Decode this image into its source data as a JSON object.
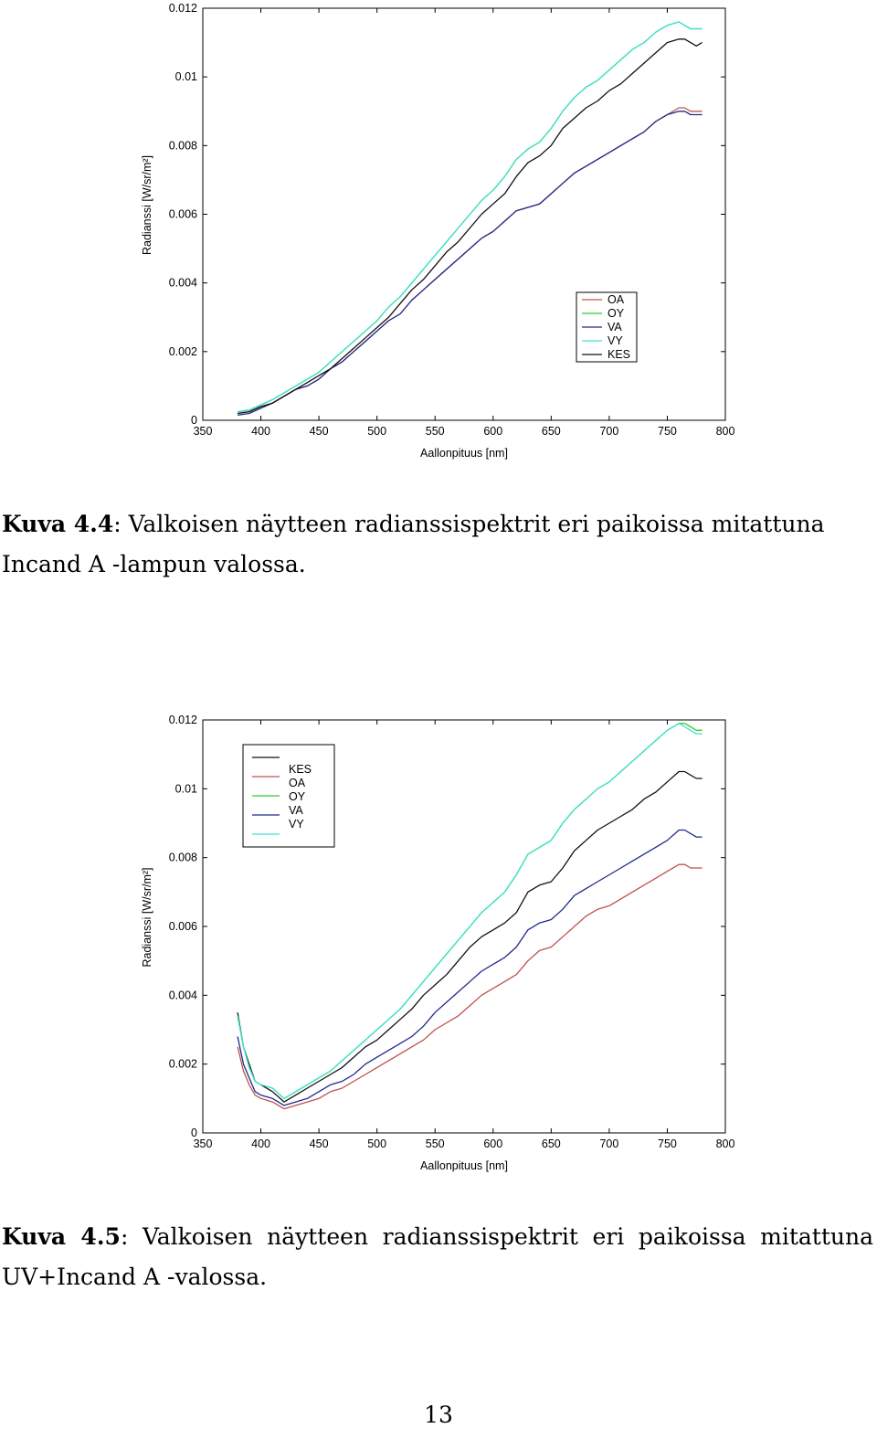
{
  "figures": [
    {
      "caption_label": "Kuva 4.4",
      "caption_text": ": Valkoisen näytteen radianssispektrit eri paikoissa mitattuna Incand A -lampun valossa."
    },
    {
      "caption_label": "Kuva 4.5",
      "caption_text": ": Valkoisen näytteen radianssispektrit eri paikoissa mitattuna UV+Incand A -valossa."
    }
  ],
  "page_number": "13",
  "chart_data": [
    {
      "type": "line",
      "xlabel": "Aallonpituus [nm]",
      "ylabel": "Radianssi [W/sr/m²]",
      "xlim": [
        350,
        800
      ],
      "ylim": [
        0,
        0.012
      ],
      "xticks": [
        "350",
        "400",
        "450",
        "500",
        "550",
        "600",
        "650",
        "700",
        "750",
        "800"
      ],
      "yticks": [
        "0",
        "0.002",
        "0.004",
        "0.006",
        "0.008",
        "0.01",
        "0.012"
      ],
      "legend_position": "bottom-right",
      "legend": [
        "OA",
        "OY",
        "VA",
        "VY",
        "KES"
      ],
      "x": [
        380,
        390,
        400,
        410,
        420,
        430,
        440,
        450,
        460,
        470,
        480,
        490,
        500,
        510,
        520,
        530,
        540,
        550,
        560,
        570,
        580,
        590,
        600,
        610,
        620,
        630,
        640,
        650,
        660,
        670,
        680,
        690,
        700,
        710,
        720,
        730,
        740,
        750,
        760,
        765,
        770,
        775,
        780
      ],
      "series": [
        {
          "name": "OA",
          "color": "#c0504d",
          "values": [
            0.0002,
            0.00025,
            0.0004,
            0.0005,
            0.0007,
            0.0009,
            0.001,
            0.0012,
            0.0015,
            0.0017,
            0.002,
            0.0023,
            0.0026,
            0.0029,
            0.0031,
            0.0035,
            0.0038,
            0.0041,
            0.0044,
            0.0047,
            0.005,
            0.0053,
            0.0055,
            0.0058,
            0.0061,
            0.0062,
            0.0063,
            0.0066,
            0.0069,
            0.0072,
            0.0074,
            0.0076,
            0.0078,
            0.008,
            0.0082,
            0.0084,
            0.0087,
            0.0089,
            0.0091,
            0.0091,
            0.009,
            0.009,
            0.009
          ]
        },
        {
          "name": "OY",
          "color": "#33cc33",
          "values": [
            0.00025,
            0.0003,
            0.00045,
            0.0006,
            0.0008,
            0.001,
            0.0012,
            0.0014,
            0.0017,
            0.002,
            0.0023,
            0.0026,
            0.0029,
            0.0033,
            0.0036,
            0.004,
            0.0044,
            0.0048,
            0.0052,
            0.0056,
            0.006,
            0.0064,
            0.0067,
            0.0071,
            0.0076,
            0.0079,
            0.0081,
            0.0085,
            0.009,
            0.0094,
            0.0097,
            0.0099,
            0.0102,
            0.0105,
            0.0108,
            0.011,
            0.0113,
            0.0115,
            0.0116,
            0.0115,
            0.0114,
            0.0114,
            0.0114
          ]
        },
        {
          "name": "VA",
          "color": "#1f2a8c",
          "values": [
            0.00015,
            0.0002,
            0.00035,
            0.0005,
            0.0007,
            0.0009,
            0.001,
            0.0012,
            0.0015,
            0.0017,
            0.002,
            0.0023,
            0.0026,
            0.0029,
            0.0031,
            0.0035,
            0.0038,
            0.0041,
            0.0044,
            0.0047,
            0.005,
            0.0053,
            0.0055,
            0.0058,
            0.0061,
            0.0062,
            0.0063,
            0.0066,
            0.0069,
            0.0072,
            0.0074,
            0.0076,
            0.0078,
            0.008,
            0.0082,
            0.0084,
            0.0087,
            0.0089,
            0.009,
            0.009,
            0.0089,
            0.0089,
            0.0089
          ]
        },
        {
          "name": "VY",
          "color": "#40e0d0",
          "values": [
            0.00025,
            0.0003,
            0.00045,
            0.0006,
            0.0008,
            0.001,
            0.0012,
            0.0014,
            0.0017,
            0.002,
            0.0023,
            0.0026,
            0.0029,
            0.0033,
            0.0036,
            0.004,
            0.0044,
            0.0048,
            0.0052,
            0.0056,
            0.006,
            0.0064,
            0.0067,
            0.0071,
            0.0076,
            0.0079,
            0.0081,
            0.0085,
            0.009,
            0.0094,
            0.0097,
            0.0099,
            0.0102,
            0.0105,
            0.0108,
            0.011,
            0.0113,
            0.0115,
            0.0116,
            0.0115,
            0.0114,
            0.0114,
            0.0114
          ]
        },
        {
          "name": "KES",
          "color": "#111111",
          "values": [
            0.0002,
            0.00025,
            0.0004,
            0.0005,
            0.0007,
            0.0009,
            0.0011,
            0.0013,
            0.0015,
            0.0018,
            0.0021,
            0.0024,
            0.0027,
            0.003,
            0.0034,
            0.0038,
            0.0041,
            0.0045,
            0.0049,
            0.0052,
            0.0056,
            0.006,
            0.0063,
            0.0066,
            0.0071,
            0.0075,
            0.0077,
            0.008,
            0.0085,
            0.0088,
            0.0091,
            0.0093,
            0.0096,
            0.0098,
            0.0101,
            0.0104,
            0.0107,
            0.011,
            0.0111,
            0.0111,
            0.011,
            0.0109,
            0.011
          ]
        }
      ]
    },
    {
      "type": "line",
      "xlabel": "Aallonpituus [nm]",
      "ylabel": "Radianssi [W/sr/m²]",
      "xlim": [
        350,
        800
      ],
      "ylim": [
        0,
        0.012
      ],
      "xticks": [
        "350",
        "400",
        "450",
        "500",
        "550",
        "600",
        "650",
        "700",
        "750",
        "800"
      ],
      "yticks": [
        "0",
        "0.002",
        "0.004",
        "0.006",
        "0.008",
        "0.01",
        "0.012"
      ],
      "legend_position": "top-left",
      "legend": [
        "KES",
        "OA",
        "OY",
        "VA",
        "VY"
      ],
      "x": [
        380,
        385,
        390,
        395,
        400,
        410,
        420,
        430,
        440,
        450,
        460,
        470,
        480,
        490,
        500,
        510,
        520,
        530,
        540,
        550,
        560,
        570,
        580,
        590,
        600,
        610,
        620,
        630,
        640,
        650,
        660,
        670,
        680,
        690,
        700,
        710,
        720,
        730,
        740,
        750,
        760,
        765,
        770,
        775,
        780
      ],
      "series": [
        {
          "name": "KES",
          "color": "#111111",
          "values": [
            0.0035,
            0.0025,
            0.002,
            0.0015,
            0.0014,
            0.0012,
            0.0009,
            0.0011,
            0.0013,
            0.0015,
            0.0017,
            0.0019,
            0.0022,
            0.0025,
            0.0027,
            0.003,
            0.0033,
            0.0036,
            0.004,
            0.0043,
            0.0046,
            0.005,
            0.0054,
            0.0057,
            0.0059,
            0.0061,
            0.0064,
            0.007,
            0.0072,
            0.0073,
            0.0077,
            0.0082,
            0.0085,
            0.0088,
            0.009,
            0.0092,
            0.0094,
            0.0097,
            0.0099,
            0.0102,
            0.0105,
            0.0105,
            0.0104,
            0.0103,
            0.0103
          ]
        },
        {
          "name": "OA",
          "color": "#c0504d",
          "values": [
            0.0025,
            0.0018,
            0.0014,
            0.0011,
            0.001,
            0.0009,
            0.0007,
            0.0008,
            0.0009,
            0.001,
            0.0012,
            0.0013,
            0.0015,
            0.0017,
            0.0019,
            0.0021,
            0.0023,
            0.0025,
            0.0027,
            0.003,
            0.0032,
            0.0034,
            0.0037,
            0.004,
            0.0042,
            0.0044,
            0.0046,
            0.005,
            0.0053,
            0.0054,
            0.0057,
            0.006,
            0.0063,
            0.0065,
            0.0066,
            0.0068,
            0.007,
            0.0072,
            0.0074,
            0.0076,
            0.0078,
            0.0078,
            0.0077,
            0.0077,
            0.0077
          ]
        },
        {
          "name": "OY",
          "color": "#33cc33",
          "values": [
            0.0034,
            0.0025,
            0.0019,
            0.0015,
            0.0014,
            0.0013,
            0.001,
            0.0012,
            0.0014,
            0.0016,
            0.0018,
            0.0021,
            0.0024,
            0.0027,
            0.003,
            0.0033,
            0.0036,
            0.004,
            0.0044,
            0.0048,
            0.0052,
            0.0056,
            0.006,
            0.0064,
            0.0067,
            0.007,
            0.0075,
            0.0081,
            0.0083,
            0.0085,
            0.009,
            0.0094,
            0.0097,
            0.01,
            0.0102,
            0.0105,
            0.0108,
            0.0111,
            0.0114,
            0.0117,
            0.0119,
            0.0119,
            0.0118,
            0.0117,
            0.0117
          ]
        },
        {
          "name": "VA",
          "color": "#1f2a8c",
          "values": [
            0.0028,
            0.002,
            0.0016,
            0.0012,
            0.0011,
            0.001,
            0.0008,
            0.0009,
            0.001,
            0.0012,
            0.0014,
            0.0015,
            0.0017,
            0.002,
            0.0022,
            0.0024,
            0.0026,
            0.0028,
            0.0031,
            0.0035,
            0.0038,
            0.0041,
            0.0044,
            0.0047,
            0.0049,
            0.0051,
            0.0054,
            0.0059,
            0.0061,
            0.0062,
            0.0065,
            0.0069,
            0.0071,
            0.0073,
            0.0075,
            0.0077,
            0.0079,
            0.0081,
            0.0083,
            0.0085,
            0.0088,
            0.0088,
            0.0087,
            0.0086,
            0.0086
          ]
        },
        {
          "name": "VY",
          "color": "#40e0d0",
          "values": [
            0.0034,
            0.0025,
            0.0019,
            0.0015,
            0.0014,
            0.0013,
            0.001,
            0.0012,
            0.0014,
            0.0016,
            0.0018,
            0.0021,
            0.0024,
            0.0027,
            0.003,
            0.0033,
            0.0036,
            0.004,
            0.0044,
            0.0048,
            0.0052,
            0.0056,
            0.006,
            0.0064,
            0.0067,
            0.007,
            0.0075,
            0.0081,
            0.0083,
            0.0085,
            0.009,
            0.0094,
            0.0097,
            0.01,
            0.0102,
            0.0105,
            0.0108,
            0.0111,
            0.0114,
            0.0117,
            0.0119,
            0.0118,
            0.0117,
            0.0116,
            0.0116
          ]
        }
      ]
    }
  ]
}
